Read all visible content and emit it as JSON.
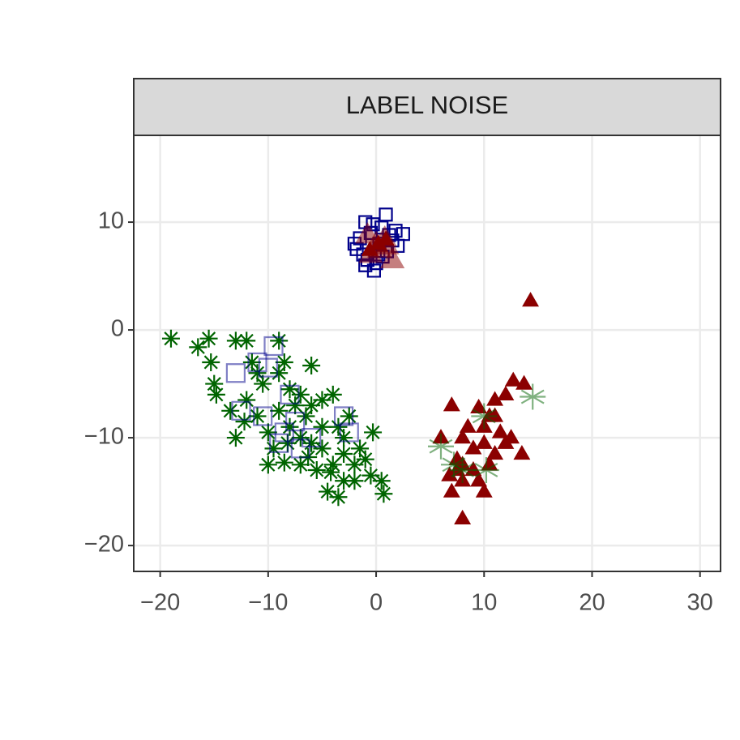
{
  "chart_data": {
    "type": "scatter",
    "strip_title": "LABEL NOISE",
    "xlim": [
      -22.45,
      31.9
    ],
    "ylim": [
      -22.4,
      18.05
    ],
    "xticks": [
      {
        "value": -20,
        "label": "−20"
      },
      {
        "value": -10,
        "label": "−10"
      },
      0,
      10,
      20,
      30
    ],
    "yticks": [
      {
        "value": -20,
        "label": "−20"
      },
      {
        "value": -10,
        "label": "−10"
      },
      0,
      10
    ],
    "grid": true,
    "series": [
      {
        "color": "#00008b",
        "marker": "square",
        "size": 15,
        "opacity": 1,
        "x": [
          0.9,
          -1.0,
          2.5,
          -2.0,
          -1.2,
          -0.2,
          0.5,
          -0.5,
          1.5,
          0.0,
          -1.5,
          1.0,
          2.0,
          -0.8,
          0.3,
          1.8,
          -1.8,
          0.6,
          -0.3,
          1.2,
          -1.0,
          0.2
        ],
        "values": [
          10.7,
          10.0,
          8.9,
          8.0,
          7.0,
          5.5,
          9.5,
          9.0,
          8.3,
          6.2,
          8.5,
          7.3,
          7.8,
          6.5,
          8.0,
          9.2,
          7.5,
          6.8,
          9.8,
          8.8,
          6.0,
          7.0
        ]
      },
      {
        "color": "#8b0000",
        "marker": "triangle",
        "size": 11,
        "opacity": 1,
        "x": [
          14.3,
          7.0,
          9.5,
          12.7,
          13.7,
          12.0,
          11.0,
          8.5,
          6.0,
          10.0,
          12.0,
          7.5,
          9.0,
          6.8,
          8.0,
          7.0,
          10.0,
          8.0,
          13.5,
          11.0,
          10.5,
          9.0,
          8.0,
          11.5,
          12.5,
          7.5,
          9.5,
          10.5,
          8.0,
          11.0,
          10.0,
          0.2,
          -0.6,
          0.9
        ],
        "values": [
          2.7,
          -7.0,
          -7.2,
          -4.7,
          -5.0,
          -6.0,
          -8.0,
          -9.0,
          -10.0,
          -10.5,
          -10.5,
          -12.0,
          -13.0,
          -13.5,
          -14.0,
          -15.0,
          -15.0,
          -17.5,
          -11.5,
          -11.5,
          -12.5,
          -11.0,
          -10.0,
          -9.5,
          -10.0,
          -13.0,
          -14.0,
          -8.0,
          -12.5,
          -6.5,
          -9.0,
          8.0,
          7.4,
          8.4
        ]
      },
      {
        "color": "#006400",
        "marker": "asterisk",
        "size": 11,
        "opacity": 1,
        "x": [
          -19,
          -15.5,
          -16.5,
          -15.3,
          -13,
          -12,
          -9,
          -11.5,
          -15,
          -14.8,
          -13.5,
          -13,
          -12,
          -10.5,
          -9,
          -8.5,
          -6,
          -7,
          -5,
          -4,
          -6.5,
          -8,
          -10,
          -11,
          -9.5,
          -10,
          -8.5,
          -7,
          -6,
          -5,
          -5.5,
          -4,
          -4.5,
          -3.5,
          -3,
          -2,
          -1,
          -1.5,
          -3,
          -2.5,
          -0.5,
          0.5,
          0.7,
          -0.3,
          -5,
          -3.5,
          -7.5,
          -6,
          -8,
          -11,
          -12.2,
          -7,
          -6.3,
          -4.2,
          -9,
          -8.2,
          -3,
          -2
        ],
        "values": [
          -0.8,
          -0.8,
          -1.6,
          -3,
          -1,
          -1,
          -1,
          -3,
          -5,
          -6,
          -7.5,
          -10,
          -6.5,
          -5,
          -4,
          -3,
          -3.3,
          -6,
          -6.5,
          -6,
          -8,
          -9,
          -9.5,
          -8,
          -11,
          -12.5,
          -12.3,
          -12.5,
          -10.5,
          -11,
          -13,
          -12.5,
          -15,
          -15.5,
          -14,
          -14,
          -12,
          -11,
          -10,
          -8,
          -13.5,
          -14,
          -15.2,
          -9.5,
          -9,
          -9,
          -7,
          -7,
          -5.5,
          -4,
          -8.5,
          -10,
          -11.8,
          -13.2,
          -7.5,
          -10.5,
          -11.5,
          -12.5
        ]
      },
      {
        "color": "#00008b",
        "marker": "square",
        "size": 22,
        "opacity": 0.5,
        "x": [
          -13,
          -11,
          -10,
          -9.5,
          -12.5,
          -10.5,
          -8.5,
          -7.5,
          -7,
          -9,
          -3,
          -2.5,
          -6,
          -8
        ],
        "values": [
          -4,
          -3,
          -3.5,
          -1.5,
          -7.5,
          -8,
          -9.5,
          -8.5,
          -11,
          -10.5,
          -8,
          -9.5,
          -10,
          -6
        ]
      },
      {
        "color": "#006400",
        "marker": "star",
        "size": 16,
        "opacity": 0.5,
        "x": [
          6.0,
          10.0,
          14.5,
          8.0,
          10.2,
          7.2
        ],
        "values": [
          -10.8,
          -8.0,
          -6.2,
          -13.0,
          -13.0,
          -12.5
        ]
      },
      {
        "color": "#8b0000",
        "marker": "triangle",
        "size": 16,
        "opacity": 0.5,
        "x": [
          0.0,
          -0.5,
          0.8,
          1.5,
          -0.8,
          0.3,
          1.0
        ],
        "values": [
          8.0,
          7.0,
          8.5,
          6.5,
          8.8,
          7.5,
          7.8
        ]
      }
    ]
  }
}
